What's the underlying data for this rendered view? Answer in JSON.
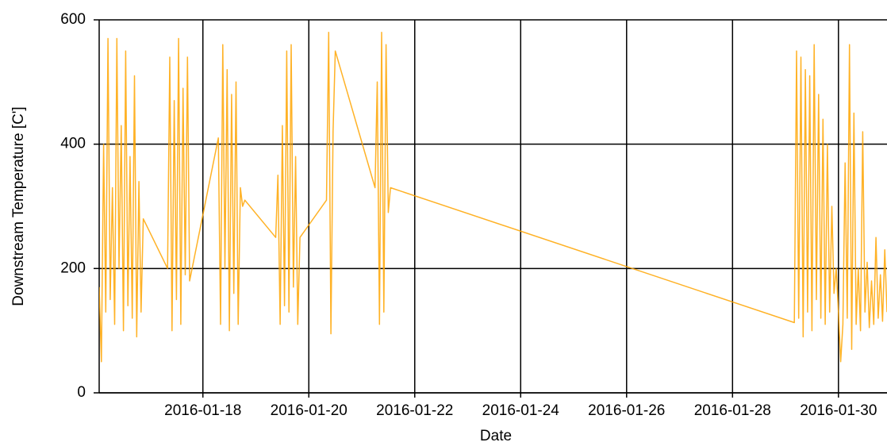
{
  "chart_data": {
    "type": "line",
    "ylabel": "Downstream Temperature [C']",
    "xlabel": "Date",
    "color": "#ffa500",
    "grid": true,
    "ylim": [
      0,
      600
    ],
    "yticks": [
      0,
      200,
      400,
      600
    ],
    "xlim": [
      "2016-01-16T01:00",
      "2016-01-30T22:00"
    ],
    "xticks": [
      "2016-01-18",
      "2016-01-20",
      "2016-01-22",
      "2016-01-24",
      "2016-01-26",
      "2016-01-28",
      "2016-01-30"
    ],
    "x": [
      "2016-01-16T01:00",
      "2016-01-16T02:00",
      "2016-01-16T03:00",
      "2016-01-16T04:00",
      "2016-01-16T05:00",
      "2016-01-16T06:00",
      "2016-01-16T07:00",
      "2016-01-16T08:00",
      "2016-01-16T09:00",
      "2016-01-16T10:00",
      "2016-01-16T11:00",
      "2016-01-16T12:00",
      "2016-01-16T13:00",
      "2016-01-16T14:00",
      "2016-01-16T15:00",
      "2016-01-16T16:00",
      "2016-01-16T17:00",
      "2016-01-16T18:00",
      "2016-01-16T19:00",
      "2016-01-16T20:00",
      "2016-01-16T21:00",
      "2016-01-17T08:00",
      "2016-01-17T09:00",
      "2016-01-17T10:00",
      "2016-01-17T11:00",
      "2016-01-17T12:00",
      "2016-01-17T13:00",
      "2016-01-17T14:00",
      "2016-01-17T15:00",
      "2016-01-17T16:00",
      "2016-01-17T17:00",
      "2016-01-17T18:00",
      "2016-01-18T07:00",
      "2016-01-18T08:00",
      "2016-01-18T09:00",
      "2016-01-18T10:00",
      "2016-01-18T11:00",
      "2016-01-18T12:00",
      "2016-01-18T13:00",
      "2016-01-18T14:00",
      "2016-01-18T15:00",
      "2016-01-18T16:00",
      "2016-01-18T17:00",
      "2016-01-18T18:00",
      "2016-01-18T19:00",
      "2016-01-19T09:00",
      "2016-01-19T10:00",
      "2016-01-19T11:00",
      "2016-01-19T12:00",
      "2016-01-19T13:00",
      "2016-01-19T14:00",
      "2016-01-19T15:00",
      "2016-01-19T16:00",
      "2016-01-19T17:00",
      "2016-01-19T18:00",
      "2016-01-19T19:00",
      "2016-01-19T20:00",
      "2016-01-20T08:00",
      "2016-01-20T09:00",
      "2016-01-20T10:00",
      "2016-01-20T11:00",
      "2016-01-20T12:00",
      "2016-01-21T06:00",
      "2016-01-21T07:00",
      "2016-01-21T08:00",
      "2016-01-21T09:00",
      "2016-01-21T10:00",
      "2016-01-21T11:00",
      "2016-01-21T12:00",
      "2016-01-21T13:00",
      "2016-01-29T04:00",
      "2016-01-29T05:00",
      "2016-01-29T06:00",
      "2016-01-29T07:00",
      "2016-01-29T08:00",
      "2016-01-29T09:00",
      "2016-01-29T10:00",
      "2016-01-29T11:00",
      "2016-01-29T12:00",
      "2016-01-29T13:00",
      "2016-01-29T14:00",
      "2016-01-29T15:00",
      "2016-01-29T16:00",
      "2016-01-29T17:00",
      "2016-01-29T18:00",
      "2016-01-29T19:00",
      "2016-01-29T20:00",
      "2016-01-29T21:00",
      "2016-01-29T22:00",
      "2016-01-29T23:00",
      "2016-01-30T00:00",
      "2016-01-30T01:00",
      "2016-01-30T02:00",
      "2016-01-30T03:00",
      "2016-01-30T04:00",
      "2016-01-30T05:00",
      "2016-01-30T06:00",
      "2016-01-30T07:00",
      "2016-01-30T08:00",
      "2016-01-30T09:00",
      "2016-01-30T10:00",
      "2016-01-30T11:00",
      "2016-01-30T12:00",
      "2016-01-30T13:00",
      "2016-01-30T14:00",
      "2016-01-30T15:00",
      "2016-01-30T16:00",
      "2016-01-30T17:00",
      "2016-01-30T18:00",
      "2016-01-30T19:00",
      "2016-01-30T20:00",
      "2016-01-30T21:00",
      "2016-01-30T22:00"
    ],
    "values": [
      170,
      50,
      400,
      130,
      570,
      150,
      330,
      110,
      570,
      200,
      430,
      100,
      550,
      140,
      380,
      120,
      510,
      90,
      340,
      130,
      280,
      200,
      540,
      100,
      470,
      150,
      570,
      110,
      490,
      190,
      540,
      180,
      410,
      110,
      560,
      200,
      520,
      100,
      480,
      160,
      500,
      110,
      330,
      300,
      310,
      250,
      350,
      110,
      430,
      140,
      550,
      130,
      560,
      170,
      380,
      110,
      250,
      310,
      580,
      95,
      420,
      550,
      330,
      500,
      110,
      580,
      130,
      560,
      290,
      330,
      113,
      550,
      120,
      540,
      90,
      520,
      130,
      510,
      100,
      560,
      150,
      480,
      120,
      440,
      110,
      400,
      130,
      300,
      160,
      200,
      130,
      50,
      110,
      370,
      120,
      560,
      70,
      450,
      110,
      200,
      100,
      420,
      130,
      210,
      105,
      180,
      110,
      250,
      120,
      190,
      115,
      230,
      130
    ]
  }
}
